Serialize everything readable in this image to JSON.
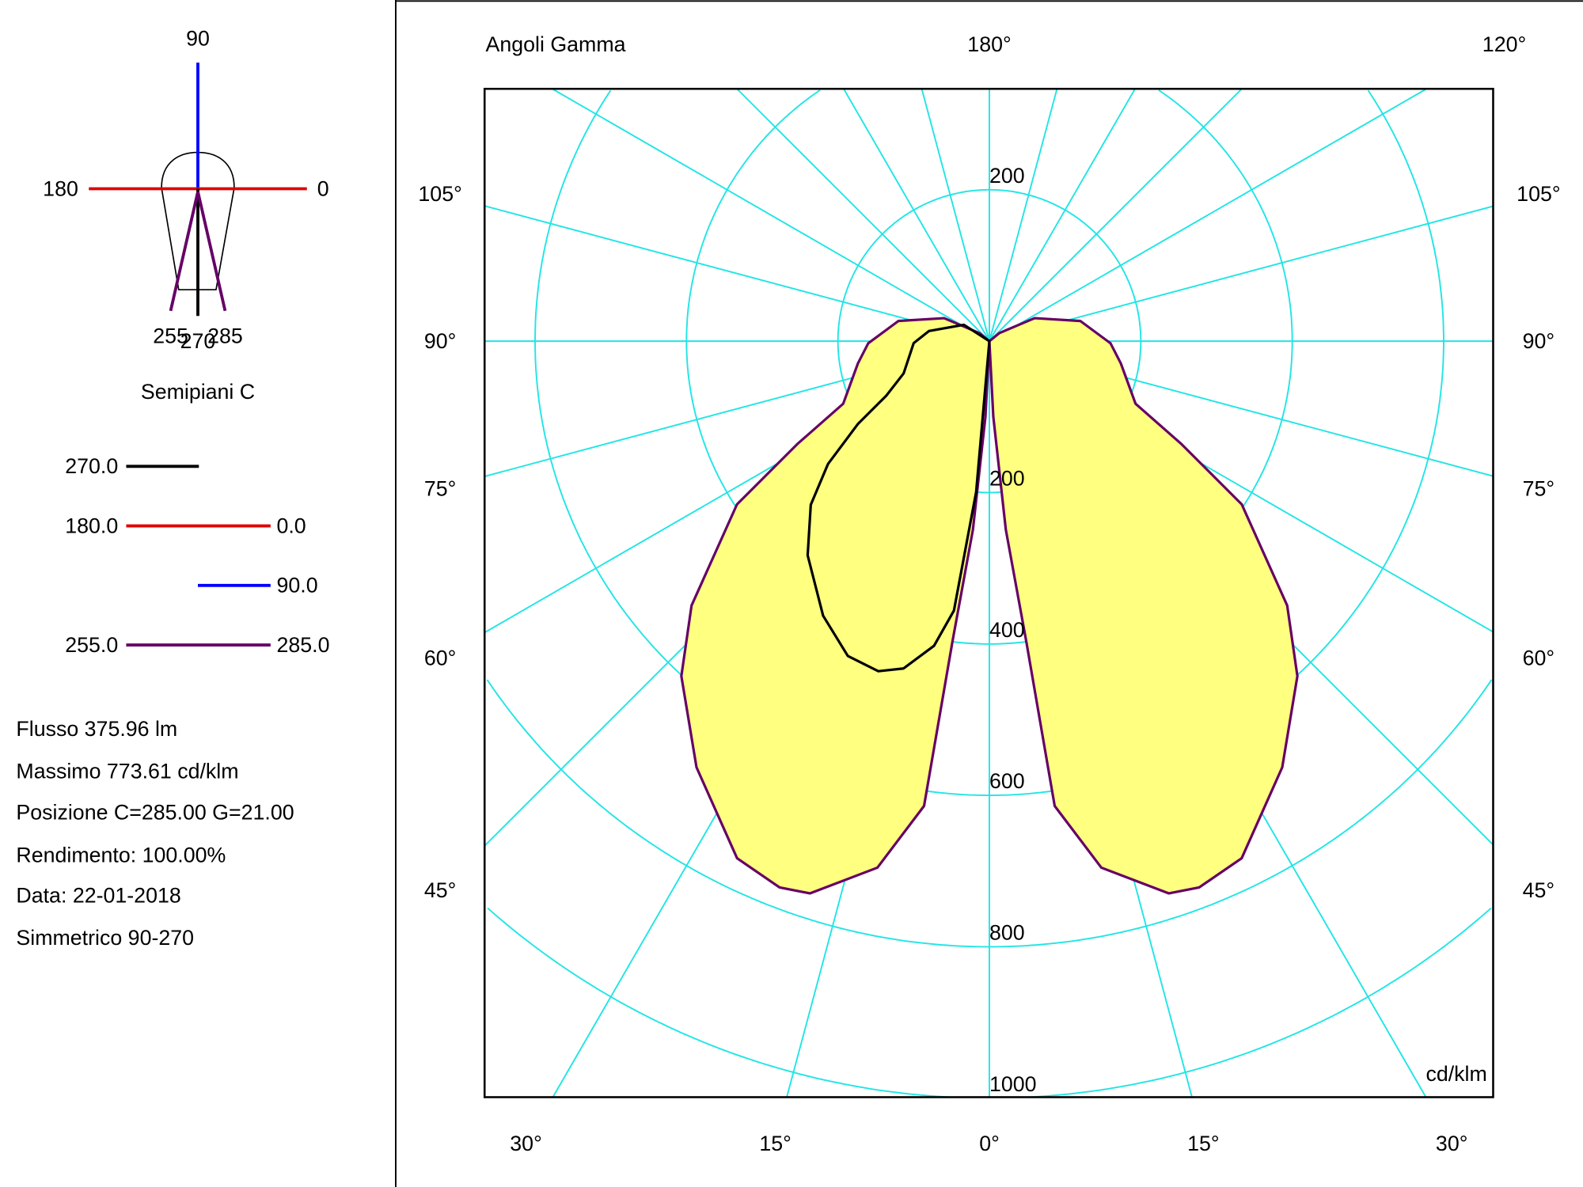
{
  "icon": {
    "label_90": "90",
    "label_180": "180",
    "label_0": "0",
    "label_255": "255",
    "label_270": "270",
    "label_285": "285",
    "title": "Semipiani C"
  },
  "legend": [
    {
      "left": "270.0",
      "right": "",
      "color": "#000000"
    },
    {
      "left": "180.0",
      "right": "0.0",
      "color": "#e00000"
    },
    {
      "left": "",
      "right": "90.0",
      "color": "#0000ff"
    },
    {
      "left": "255.0",
      "right": "285.0",
      "color": "#660066"
    }
  ],
  "info": [
    "Flusso 375.96  lm",
    "Massimo 773.61  cd/klm",
    "Posizione C=285.00 G=21.00",
    "Rendimento: 100.00%",
    "Data: 22-01-2018",
    "Simmetrico 90-270"
  ],
  "chart_data": {
    "type": "polar",
    "title": "Angoli Gamma",
    "unit_label": "cd/klm",
    "top_labels": {
      "center": "180°",
      "right": "120°"
    },
    "side_angle_labels": [
      "105°",
      "90°",
      "75°",
      "60°",
      "45°"
    ],
    "bottom_angle_labels": [
      "30°",
      "15°",
      "0°",
      "15°",
      "30°"
    ],
    "radial_ticks": [
      200,
      400,
      600,
      800,
      1000
    ],
    "radial_tick_labels_top": [
      "200"
    ],
    "radial_tick_labels_bottom": [
      "200",
      "400",
      "600",
      "800",
      "1000"
    ],
    "angle_grid_step_deg": 15,
    "grid": true,
    "colors": {
      "grid": "#22e5e5",
      "fill": "#ffff80"
    },
    "series": [
      {
        "name": "255.0 / 285.0",
        "color": "#660066",
        "filled": true,
        "sides": "both",
        "gamma": [
          0,
          3,
          5,
          7,
          8,
          12,
          18,
          21,
          26,
          34.5,
          42.6,
          48.4,
          57.1,
          61.8,
          66.8,
          80.4,
          89,
          102.5,
          117,
          129,
          180
        ],
        "intensity": [
          0,
          100,
          250,
          400,
          620,
          711,
          767,
          773,
          760,
          683,
          601,
          526,
          397,
          288,
          210,
          176,
          160,
          123,
          67,
          17,
          0
        ]
      },
      {
        "name": "270.0",
        "color": "#000000",
        "filled": false,
        "sides": "left",
        "gamma": [
          0,
          5,
          7.5,
          10.3,
          14.7,
          18.6,
          24.2,
          31.2,
          40.3,
          47.5,
          52.7,
          57.8,
          62.1,
          69.4,
          88.5,
          99.5,
          122.6,
          180
        ],
        "intensity": [
          0,
          200,
          359,
          409,
          447,
          460,
          456,
          424,
          371,
          320,
          268,
          205,
          154,
          121,
          100,
          81,
          40,
          0
        ]
      }
    ]
  }
}
